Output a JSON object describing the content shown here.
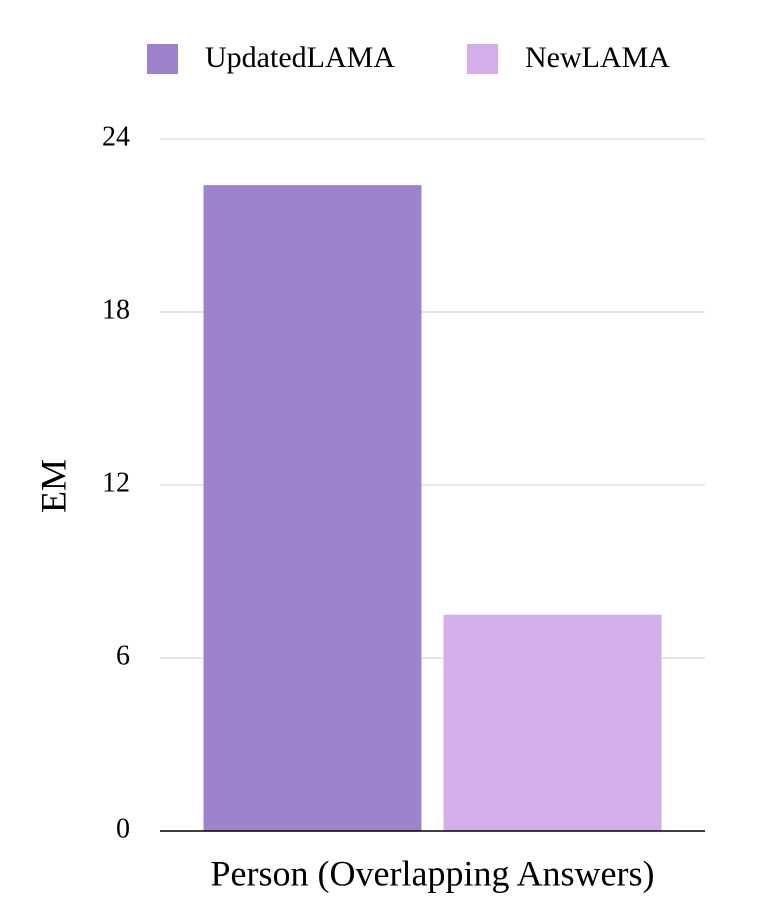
{
  "chart_data": {
    "type": "bar",
    "categories": [
      "Person (Overlapping Answers)"
    ],
    "series": [
      {
        "name": "UpdatedLAMA",
        "color": "#9e82cc",
        "values": [
          22.4
        ]
      },
      {
        "name": "NewLAMA",
        "color": "#d3aee8",
        "values": [
          7.5
        ]
      }
    ],
    "y_label": "EM",
    "ylim": [
      0,
      24
    ],
    "yticks": [
      0,
      6,
      12,
      18,
      24
    ],
    "grid": true,
    "legend": "top"
  }
}
